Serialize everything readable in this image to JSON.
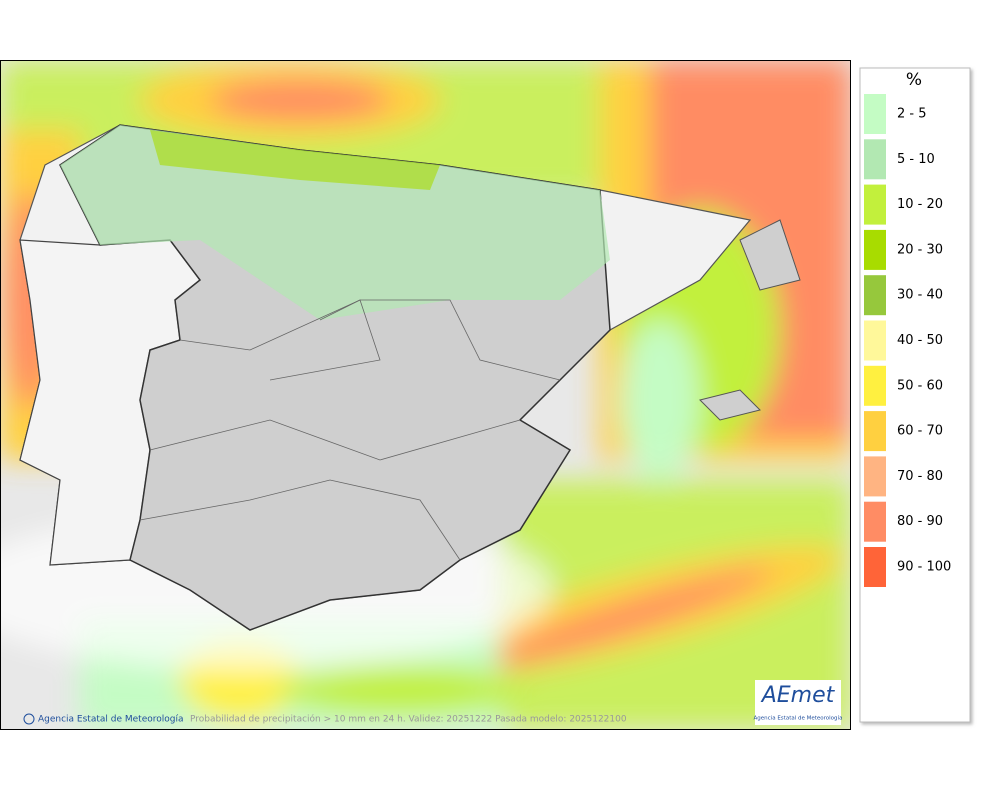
{
  "legend": {
    "title": "%",
    "items": [
      {
        "label": "2 - 5",
        "color": "#c4fcc4"
      },
      {
        "label": "5 - 10",
        "color": "#b2e8b2"
      },
      {
        "label": "10 - 20",
        "color": "#c2f03c"
      },
      {
        "label": "20 - 30",
        "color": "#a8dc00"
      },
      {
        "label": "30 - 40",
        "color": "#96c83c"
      },
      {
        "label": "40 - 50",
        "color": "#fff89a"
      },
      {
        "label": "50 - 60",
        "color": "#fff040"
      },
      {
        "label": "60 - 70",
        "color": "#ffd040"
      },
      {
        "label": "70 - 80",
        "color": "#ffb482"
      },
      {
        "label": "80 - 90",
        "color": "#ff8c64"
      },
      {
        "label": "90 - 100",
        "color": "#ff6438"
      }
    ]
  },
  "footer": {
    "credit": "Agencia Estatal de Meteorología",
    "caption": "Probabilidad de precipitación > 10 mm en 24 h. Validez: 20251222 Pasada modelo: 2025122100"
  },
  "logo": {
    "name": "AEmet",
    "subtitle": "Agencia Estatal de Meteorología"
  }
}
